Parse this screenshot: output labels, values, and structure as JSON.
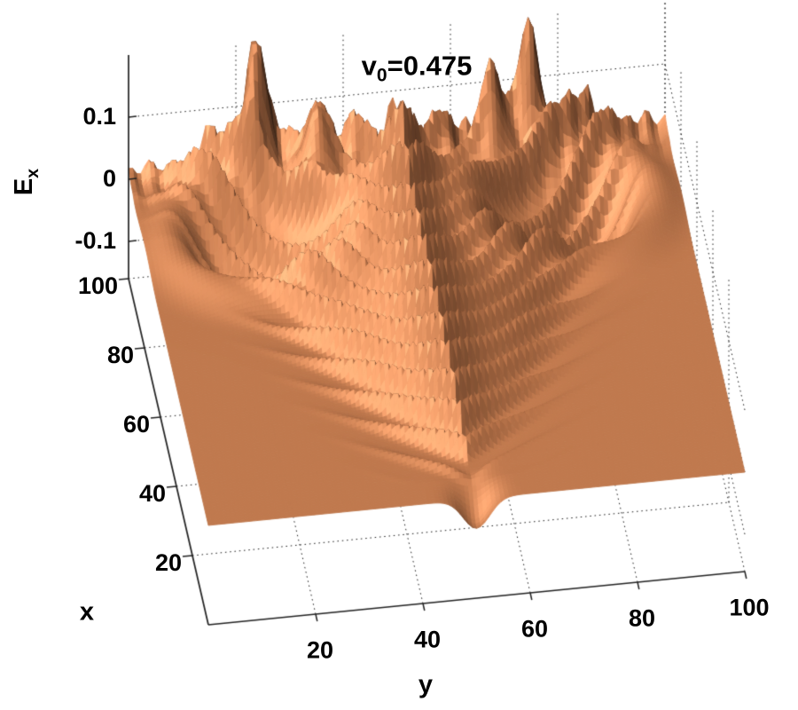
{
  "chart_data": {
    "type": "surface",
    "title": {
      "base": "v",
      "sub": "0",
      "rest": "=0.475"
    },
    "vertical_axis": {
      "label_base": "E",
      "label_sub": "x",
      "ticks": [
        0.1,
        0,
        -0.1
      ],
      "tick_labels": [
        "0.1",
        "0",
        "-0.1"
      ],
      "range": [
        -0.16,
        0.2
      ]
    },
    "left_axis": {
      "label": "x",
      "ticks": [
        20,
        40,
        60,
        80,
        100
      ],
      "tick_labels": [
        "100",
        "80",
        "60",
        "40",
        "20"
      ],
      "range": [
        0,
        100
      ]
    },
    "bottom_axis": {
      "label": "y",
      "ticks": [
        20,
        40,
        60,
        80,
        100
      ],
      "tick_labels": [
        "20",
        "40",
        "60",
        "80",
        "100"
      ],
      "range": [
        0,
        100
      ]
    },
    "colormap": "copper",
    "grid": "dotted",
    "flat_level": 0,
    "surface_model": {
      "grid_n": 132,
      "apex_u": 6,
      "cone_slope": 0.38,
      "wavelength": 7.2,
      "chevron": 0.62,
      "ripple_amp": 0.034,
      "sharp": 1.9,
      "edge_w": 9,
      "int_base": 0.35,
      "int_decay": 24,
      "spine_boost": 1.0,
      "spine_w": 5.5,
      "ramp": 14,
      "growth": 0.006,
      "craters": [
        {
          "u": 79,
          "a": 27.5,
          "depth": 0.115,
          "r": 13.5,
          "rim": 0.05,
          "rim_r": 17,
          "rim_w": 5
        }
      ],
      "spikes": [
        {
          "u": 98,
          "y": 23.5,
          "amp": 0.21,
          "w": 2.6
        },
        {
          "u": 98,
          "y": 74.5,
          "amp": 0.18,
          "w": 2.4
        },
        {
          "u": 92.5,
          "y": 34,
          "amp": 0.105,
          "w": 3.2
        },
        {
          "u": 95,
          "y": 67,
          "amp": 0.1,
          "w": 3.0
        },
        {
          "u": 90,
          "y": 50,
          "amp": 0.07,
          "w": 4.0
        },
        {
          "u": 97,
          "y": 42,
          "amp": 0.05,
          "w": 2.8
        },
        {
          "u": 96,
          "y": 58,
          "amp": 0.05,
          "w": 2.8
        }
      ],
      "notch": {
        "u": 1,
        "wu": 4.5,
        "wy": 3.5,
        "depth": 0.05
      },
      "back_rough_u0": 86,
      "back_rough_amp": 0.02,
      "back_rough_freq": 0.85,
      "zclip_lo": -0.145,
      "zclip_hi": 0.21,
      "light": [
        -0.4,
        -0.5,
        0.77
      ],
      "grad_scale": 40,
      "ambient": 0.16,
      "diffuse": 0.56,
      "spec_pow": 10,
      "spec_amp": 0.22
    }
  }
}
